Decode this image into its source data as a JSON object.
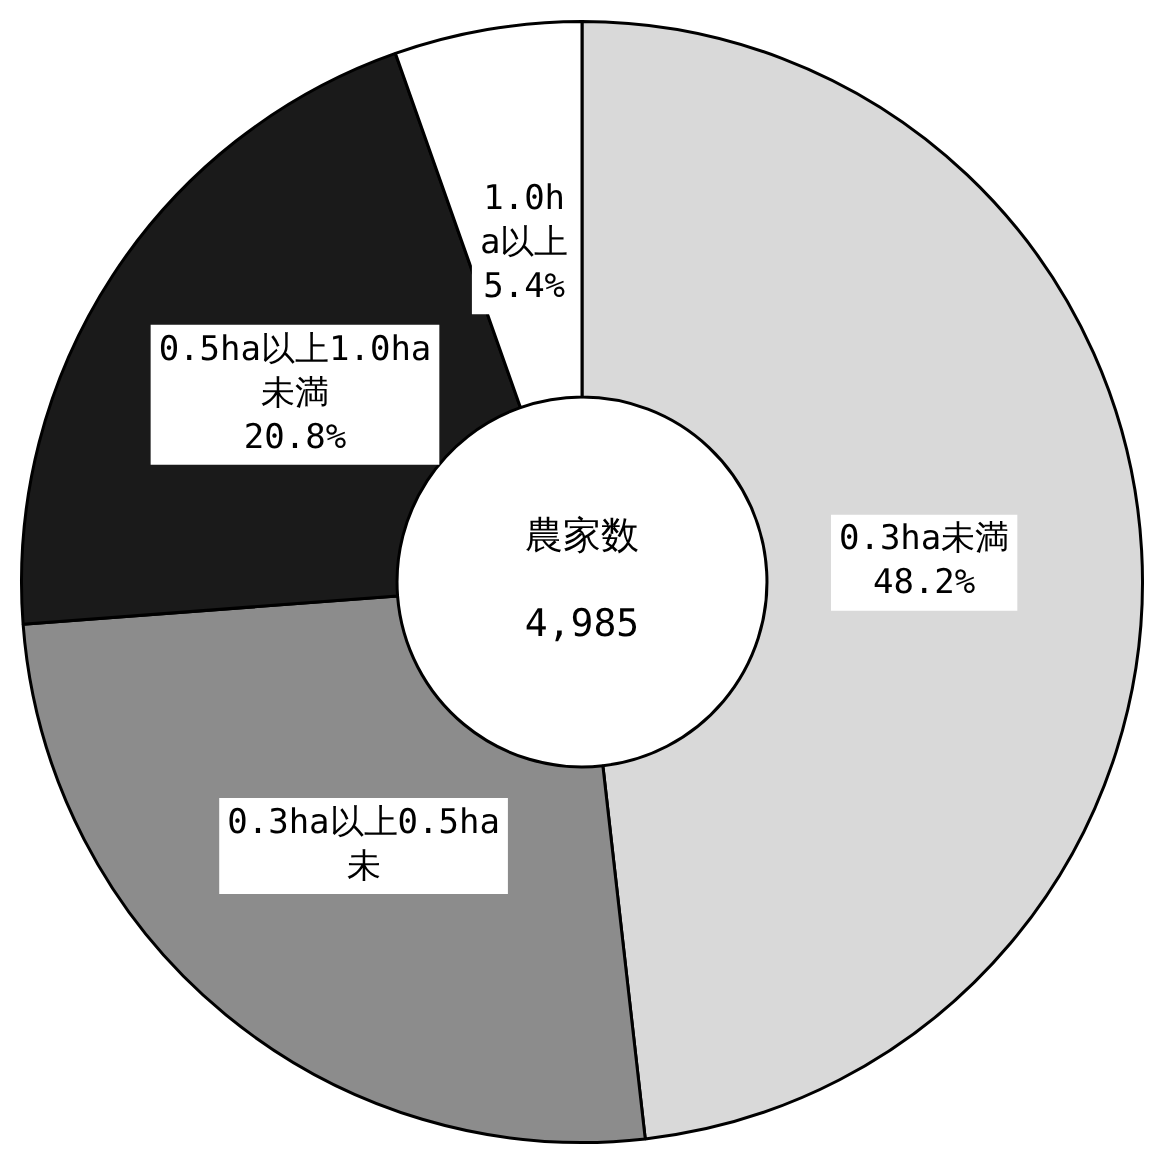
{
  "chart_data": {
    "type": "donut",
    "categories": [
      "0.3ha未満",
      "0.3ha以上0.5ha未",
      "0.5ha以上1.0ha未満",
      "1.0ha以上"
    ],
    "values": [
      48.2,
      25.6,
      20.8,
      5.4
    ],
    "value_labels": [
      "48.2%",
      null,
      "20.8%",
      "5.4%"
    ],
    "colors": [
      "#d9d9d9",
      "#8c8c8c",
      "#1a1a1a",
      "#ffffff"
    ],
    "annotations": [
      "農家数",
      "4,985"
    ],
    "legend": false
  }
}
